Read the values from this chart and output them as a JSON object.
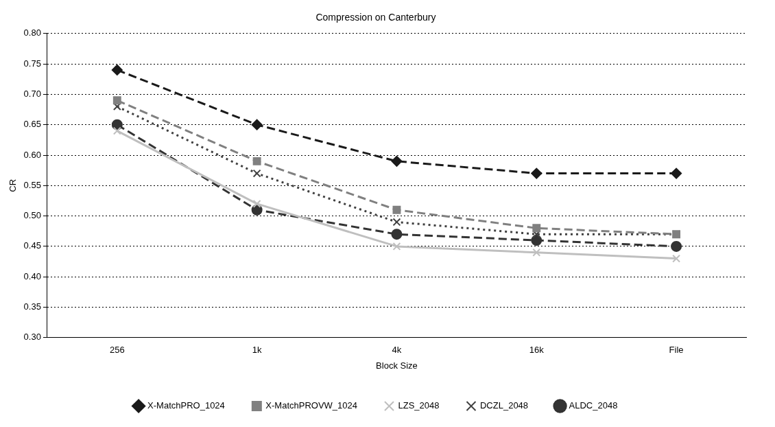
{
  "chart_data": {
    "type": "line",
    "title": "Compression on Canterbury",
    "xlabel": "Block Size",
    "ylabel": "CR",
    "categories": [
      "256",
      "1k",
      "4k",
      "16k",
      "File"
    ],
    "ylim": [
      0.3,
      0.8
    ],
    "yticks": [
      {
        "value": 0.3,
        "label": "0.30"
      },
      {
        "value": 0.35,
        "label": "0.35"
      },
      {
        "value": 0.4,
        "label": "0.40"
      },
      {
        "value": 0.45,
        "label": "0.45"
      },
      {
        "value": 0.5,
        "label": "0.50"
      },
      {
        "value": 0.55,
        "label": "0.55"
      },
      {
        "value": 0.6,
        "label": "0.60"
      },
      {
        "value": 0.65,
        "label": "0.65"
      },
      {
        "value": 0.7,
        "label": "0.70"
      },
      {
        "value": 0.75,
        "label": "0.75"
      },
      {
        "value": 0.8,
        "label": "0.80"
      }
    ],
    "grid": "y",
    "legend": "bottom",
    "series": [
      {
        "name": "X-MatchPRO_1024",
        "color": "#1a1a1a",
        "marker": "diamond",
        "line_style": "dashed",
        "values": [
          0.74,
          0.65,
          0.59,
          0.57,
          0.57
        ]
      },
      {
        "name": "X-MatchPROVW_1024",
        "color": "#808080",
        "marker": "square",
        "line_style": "dashed",
        "values": [
          0.69,
          0.59,
          0.51,
          0.48,
          0.47
        ]
      },
      {
        "name": "LZS_2048",
        "color": "#bfbfbf",
        "marker": "cross",
        "line_style": "solid",
        "values": [
          0.64,
          0.52,
          0.45,
          0.44,
          0.43
        ]
      },
      {
        "name": "DCZL_2048",
        "color": "#404040",
        "marker": "cross",
        "line_style": "dotted",
        "values": [
          0.68,
          0.57,
          0.49,
          0.47,
          0.47
        ]
      },
      {
        "name": "ALDC_2048",
        "color": "#333333",
        "marker": "circle",
        "line_style": "dashed",
        "values": [
          0.65,
          0.51,
          0.47,
          0.46,
          0.45
        ]
      }
    ]
  }
}
